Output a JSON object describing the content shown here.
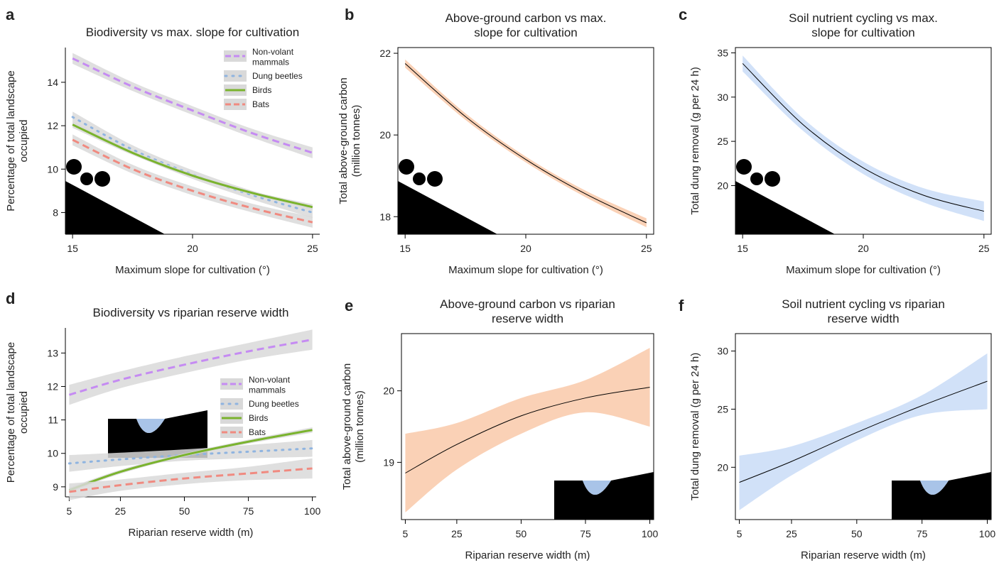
{
  "chart_data": [
    {
      "type": "line",
      "panel": "a",
      "title": "Biodiversity vs max. slope for cultivation",
      "xlabel": "Maximum slope for cultivation (°)",
      "ylabel": "Percentage of total landscape\noccupied",
      "x": [
        15,
        17.5,
        20,
        22.5,
        25
      ],
      "xlim": [
        14.7,
        25.3
      ],
      "xticks": [
        15,
        20,
        25
      ],
      "ylim": [
        7,
        15.6
      ],
      "yticks": [
        8,
        10,
        12,
        14
      ],
      "box": false,
      "legend": "upper right",
      "band_color": "#d9d9d9",
      "series": [
        {
          "name": "Non-volant\nmammals",
          "color": "#c58bf2",
          "style": "dashed",
          "values": [
            15.1,
            13.8,
            12.7,
            11.65,
            10.75
          ],
          "lower": [
            14.85,
            13.6,
            12.5,
            11.45,
            10.5
          ],
          "upper": [
            15.35,
            14.0,
            12.9,
            11.85,
            11.0
          ]
        },
        {
          "name": "Dung beetles",
          "color": "#8fb4e0",
          "style": "dotted",
          "values": [
            12.4,
            10.9,
            9.75,
            8.8,
            8.0
          ],
          "lower": [
            12.15,
            10.7,
            9.55,
            8.6,
            7.75
          ],
          "upper": [
            12.65,
            11.1,
            9.95,
            9.0,
            8.25
          ]
        },
        {
          "name": "Birds",
          "color": "#7ab32e",
          "style": "solid",
          "values": [
            12.05,
            10.75,
            9.7,
            8.9,
            8.25
          ],
          "lower": [
            11.9,
            10.65,
            9.62,
            8.82,
            8.12
          ],
          "upper": [
            12.2,
            10.85,
            9.78,
            8.98,
            8.38
          ]
        },
        {
          "name": "Bats",
          "color": "#f08a80",
          "style": "dashed",
          "values": [
            11.35,
            10.0,
            9.0,
            8.2,
            7.55
          ],
          "lower": [
            11.1,
            9.8,
            8.8,
            8.0,
            7.3
          ],
          "upper": [
            11.6,
            10.2,
            9.2,
            8.4,
            7.8
          ]
        }
      ]
    },
    {
      "type": "line",
      "panel": "b",
      "title": "Above-ground carbon vs max.\nslope for cultivation",
      "xlabel": "Maximum slope for cultivation (°)",
      "ylabel": "Total above-ground carbon\n(million tonnes)",
      "x": [
        15,
        17.5,
        20,
        22.5,
        25
      ],
      "xlim": [
        14.7,
        25.3
      ],
      "xticks": [
        15,
        20,
        25
      ],
      "ylim": [
        17.57,
        22.14
      ],
      "yticks": [
        18,
        20,
        22
      ],
      "box": true,
      "band_color": "#f9c9a9",
      "color": "#000000",
      "values": [
        21.75,
        20.45,
        19.4,
        18.55,
        17.85
      ],
      "lower": [
        21.65,
        20.37,
        19.33,
        18.47,
        17.74
      ],
      "upper": [
        21.85,
        20.53,
        19.47,
        18.63,
        17.96
      ]
    },
    {
      "type": "line",
      "panel": "c",
      "title": "Soil nutrient cycling vs max.\nslope for cultivation",
      "xlabel": "Maximum slope for cultivation (°)",
      "ylabel": "Total dung removal (g per 24 h)",
      "x": [
        15,
        17.5,
        20,
        22.5,
        25
      ],
      "xlim": [
        14.7,
        25.3
      ],
      "xticks": [
        15,
        20,
        25
      ],
      "ylim": [
        14.5,
        35.6
      ],
      "yticks": [
        20,
        25,
        30,
        35
      ],
      "box": true,
      "band_color": "#c9dcf7",
      "color": "#000000",
      "values": [
        33.8,
        26.9,
        22.0,
        18.9,
        17.1
      ],
      "lower": [
        32.9,
        26.2,
        21.3,
        18.1,
        16.0
      ],
      "upper": [
        34.7,
        27.6,
        22.7,
        19.7,
        18.2
      ]
    },
    {
      "type": "line",
      "panel": "d",
      "title": "Biodiversity vs riparian reserve width",
      "xlabel": "Riparian reserve width (m)",
      "ylabel": "Percentage of total landscape\noccupied",
      "x": [
        5,
        25,
        50,
        75,
        100
      ],
      "xlim": [
        3.5,
        101.5
      ],
      "xticks": [
        5,
        25,
        50,
        75,
        100
      ],
      "ylim": [
        8.7,
        13.75
      ],
      "yticks": [
        9,
        10,
        11,
        12,
        13
      ],
      "box": false,
      "legend": "center right",
      "band_color": "#d9d9d9",
      "series": [
        {
          "name": "Non-volant\nmammals",
          "color": "#c58bf2",
          "style": "dashed",
          "values": [
            11.75,
            12.2,
            12.65,
            13.05,
            13.4
          ],
          "lower": [
            11.45,
            11.95,
            12.4,
            12.8,
            13.1
          ],
          "upper": [
            12.05,
            12.45,
            12.9,
            13.3,
            13.7
          ]
        },
        {
          "name": "Dung beetles",
          "color": "#8fb4e0",
          "style": "dotted",
          "values": [
            9.7,
            9.82,
            9.95,
            10.05,
            10.15
          ],
          "lower": [
            9.45,
            9.62,
            9.78,
            9.85,
            9.9
          ],
          "upper": [
            9.95,
            10.02,
            10.12,
            10.25,
            10.4
          ]
        },
        {
          "name": "Birds",
          "color": "#7ab32e",
          "style": "solid",
          "values": [
            8.9,
            9.45,
            9.95,
            10.35,
            10.7
          ],
          "lower": [
            8.83,
            9.39,
            9.9,
            10.29,
            10.62
          ],
          "upper": [
            8.97,
            9.51,
            10.0,
            10.41,
            10.78
          ]
        },
        {
          "name": "Bats",
          "color": "#f08a80",
          "style": "dashed",
          "values": [
            8.85,
            9.05,
            9.25,
            9.4,
            9.55
          ],
          "lower": [
            8.6,
            8.88,
            9.08,
            9.2,
            9.25
          ],
          "upper": [
            9.1,
            9.22,
            9.42,
            9.6,
            9.85
          ]
        }
      ]
    },
    {
      "type": "line",
      "panel": "e",
      "title": "Above-ground carbon vs riparian\nreserve width",
      "xlabel": "Riparian reserve width (m)",
      "ylabel": "Total above-ground carbon\n(million tonnes)",
      "x": [
        5,
        25,
        50,
        75,
        100
      ],
      "xlim": [
        3.5,
        101.5
      ],
      "xticks": [
        5,
        25,
        50,
        75,
        100
      ],
      "ylim": [
        18.2,
        20.8
      ],
      "yticks": [
        19,
        20
      ],
      "box": true,
      "band_color": "#f9c9a9",
      "color": "#000000",
      "values": [
        18.85,
        19.25,
        19.65,
        19.9,
        20.05
      ],
      "lower": [
        18.3,
        18.9,
        19.4,
        19.7,
        19.5
      ],
      "upper": [
        19.4,
        19.55,
        19.9,
        20.15,
        20.6
      ]
    },
    {
      "type": "line",
      "panel": "f",
      "title": "Soil nutrient cycling vs riparian\nreserve width",
      "xlabel": "Riparian reserve width (m)",
      "ylabel": "Total dung removal (g per 24 h)",
      "x": [
        5,
        25,
        50,
        75,
        100
      ],
      "xlim": [
        3.5,
        101.5
      ],
      "xticks": [
        5,
        25,
        50,
        75,
        100
      ],
      "ylim": [
        15.5,
        31.5
      ],
      "yticks": [
        20,
        25,
        30
      ],
      "box": true,
      "band_color": "#c9dcf7",
      "color": "#000000",
      "values": [
        18.7,
        20.5,
        23.0,
        25.3,
        27.4
      ],
      "lower": [
        16.3,
        19.3,
        22.3,
        24.5,
        25.0
      ],
      "upper": [
        21.0,
        21.8,
        23.8,
        26.2,
        29.8
      ]
    }
  ]
}
